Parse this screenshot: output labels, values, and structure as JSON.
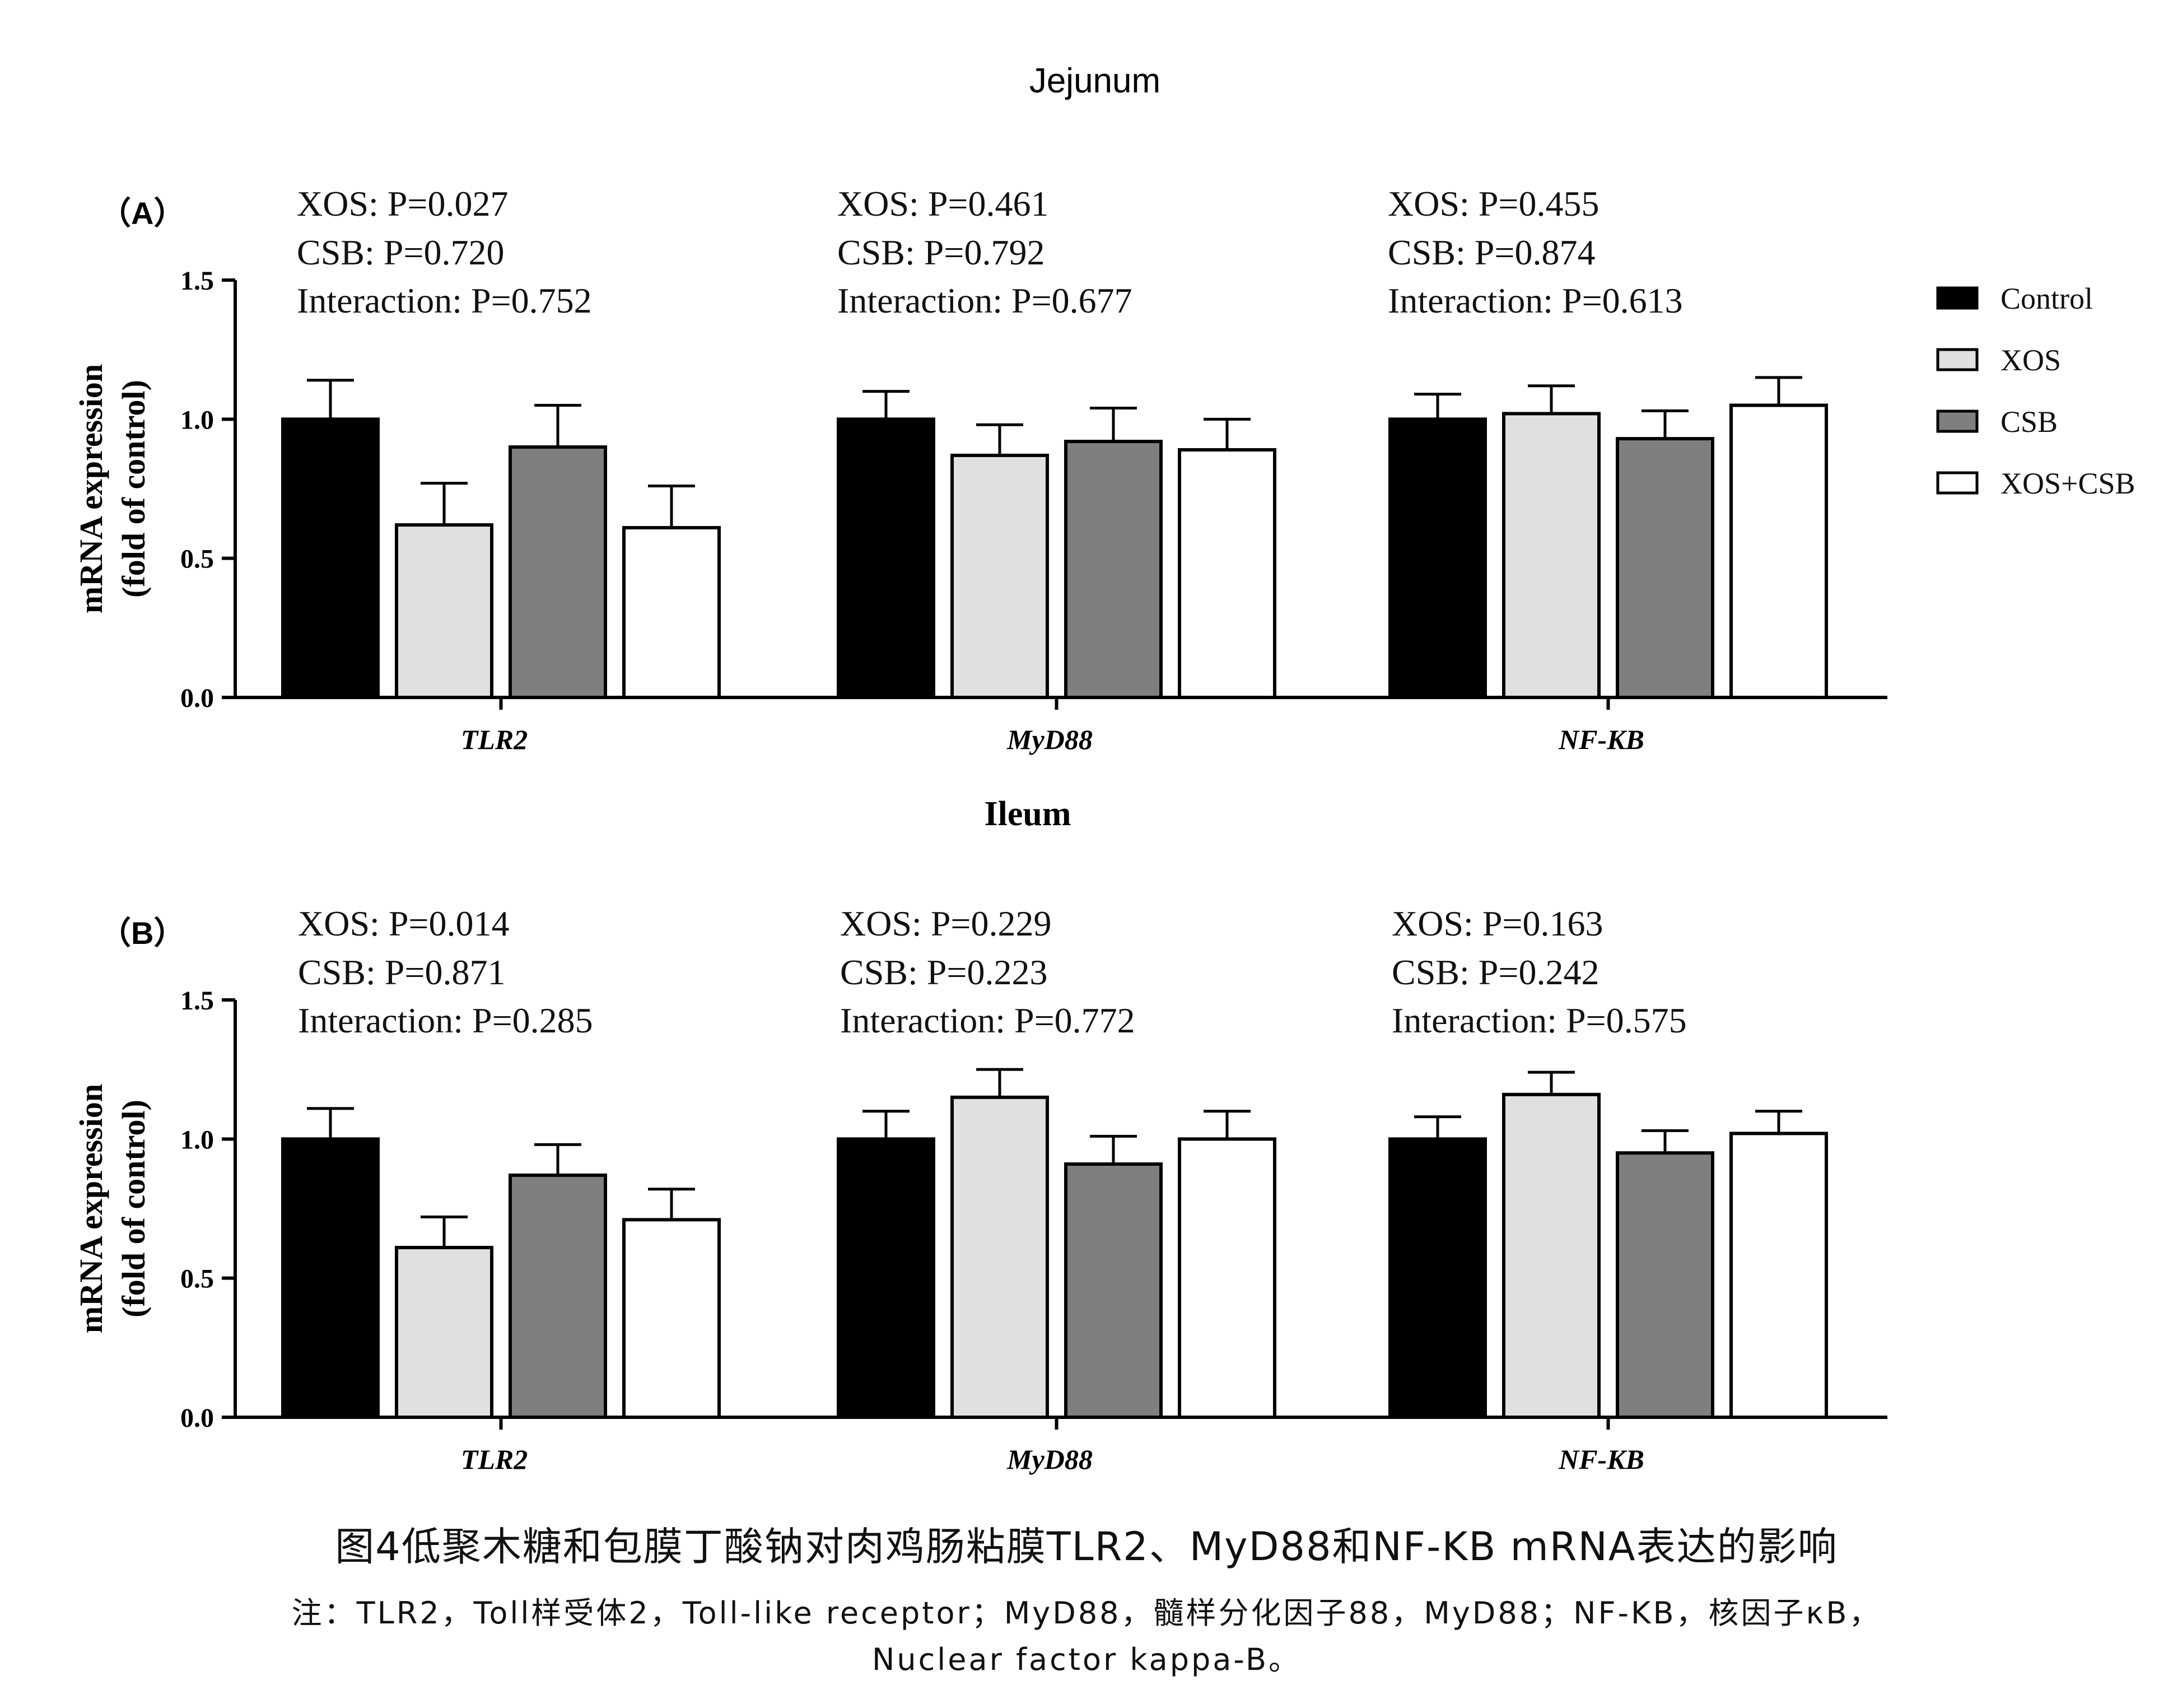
{
  "figure_title": "Jejunum",
  "legend": [
    {
      "label": "Control",
      "color": "#000000"
    },
    {
      "label": "XOS",
      "color": "#e0e0e0"
    },
    {
      "label": "CSB",
      "color": "#7f7f7f"
    },
    {
      "label": "XOS+CSB",
      "color": "#ffffff"
    }
  ],
  "chart_data": [
    {
      "type": "bar",
      "panel_label": "（A）",
      "title": "",
      "ylabel": "mRNA expression",
      "ylabel2": "(fold of control)",
      "ylim": [
        0,
        1.5
      ],
      "yticks": [
        "0.0",
        "0.5",
        "1.0",
        "1.5"
      ],
      "categories": [
        "TLR2",
        "MyD88",
        "NF-KB"
      ],
      "series": [
        {
          "name": "Control",
          "values": [
            1.0,
            1.0,
            1.0
          ],
          "errors": [
            0.14,
            0.1,
            0.09
          ]
        },
        {
          "name": "XOS",
          "values": [
            0.62,
            0.87,
            1.02
          ],
          "errors": [
            0.15,
            0.11,
            0.1
          ]
        },
        {
          "name": "CSB",
          "values": [
            0.9,
            0.92,
            0.93
          ],
          "errors": [
            0.15,
            0.12,
            0.1
          ]
        },
        {
          "name": "XOS+CSB",
          "values": [
            0.61,
            0.89,
            1.05
          ],
          "errors": [
            0.15,
            0.11,
            0.1
          ]
        }
      ],
      "stats": [
        [
          "XOS: P=0.027",
          "CSB: P=0.720",
          "Interaction: P=0.752"
        ],
        [
          "XOS: P=0.461",
          "CSB: P=0.792",
          "Interaction: P=0.677"
        ],
        [
          "XOS: P=0.455",
          "CSB: P=0.874",
          "Interaction: P=0.613"
        ]
      ]
    },
    {
      "type": "bar",
      "panel_label": "（B）",
      "title": "Ileum",
      "ylabel": "mRNA expression",
      "ylabel2": "(fold of control)",
      "ylim": [
        0,
        1.5
      ],
      "yticks": [
        "0.0",
        "0.5",
        "1.0",
        "1.5"
      ],
      "categories": [
        "TLR2",
        "MyD88",
        "NF-KB"
      ],
      "series": [
        {
          "name": "Control",
          "values": [
            1.0,
            1.0,
            1.0
          ],
          "errors": [
            0.11,
            0.1,
            0.08
          ]
        },
        {
          "name": "XOS",
          "values": [
            0.61,
            1.15,
            1.16
          ],
          "errors": [
            0.11,
            0.1,
            0.08
          ]
        },
        {
          "name": "CSB",
          "values": [
            0.87,
            0.91,
            0.95
          ],
          "errors": [
            0.11,
            0.1,
            0.08
          ]
        },
        {
          "name": "XOS+CSB",
          "values": [
            0.71,
            1.0,
            1.02
          ],
          "errors": [
            0.11,
            0.1,
            0.08
          ]
        }
      ],
      "stats": [
        [
          "XOS: P=0.014",
          "CSB: P=0.871",
          "Interaction: P=0.285"
        ],
        [
          "XOS: P=0.229",
          "CSB: P=0.223",
          "Interaction: P=0.772"
        ],
        [
          "XOS: P=0.163",
          "CSB: P=0.242",
          "Interaction: P=0.575"
        ]
      ]
    }
  ],
  "caption": {
    "title": "图4低聚木糖和包膜丁酸钠对肉鸡肠粘膜TLR2、MyD88和NF-KB mRNA表达的影响",
    "note_line1": "注：TLR2，Toll样受体2，Toll-like receptor；MyD88，髓样分化因子88，MyD88；NF-KB，核因子κB，",
    "note_line2": "Nuclear factor kappa-B。"
  }
}
